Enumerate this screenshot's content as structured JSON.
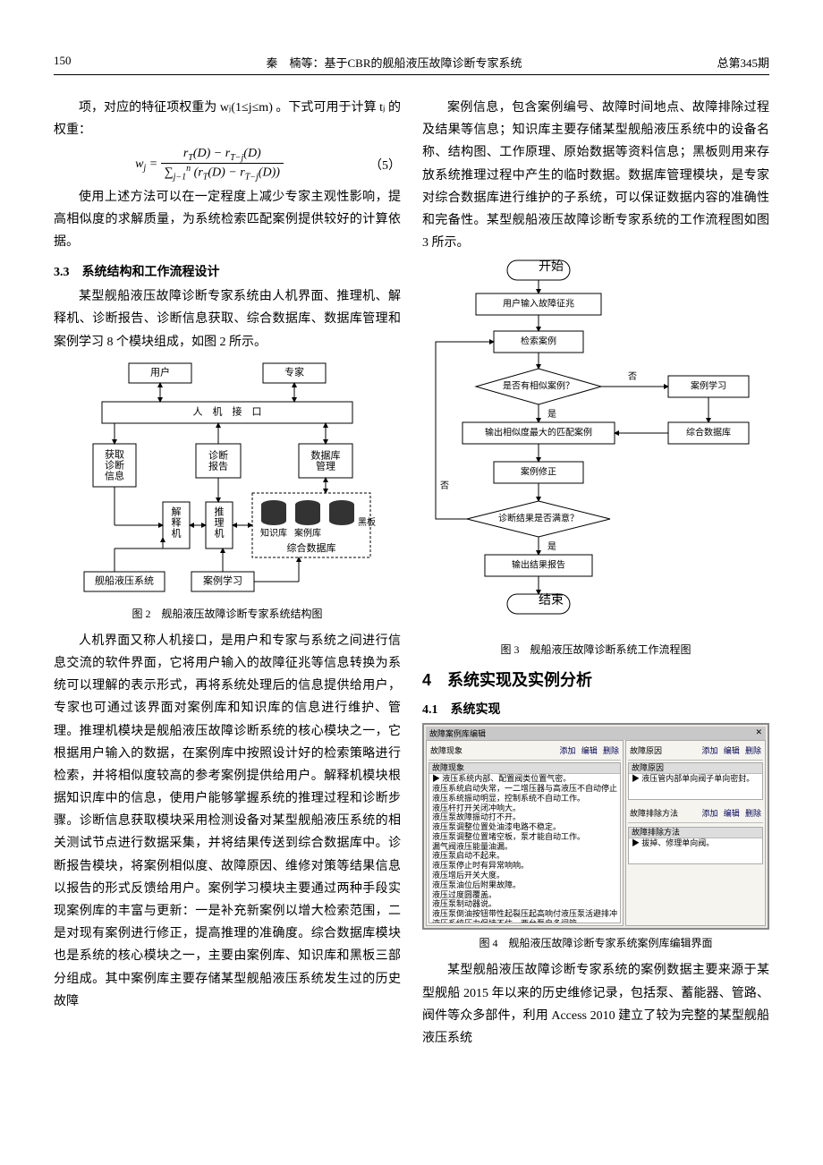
{
  "header": {
    "page": "150",
    "center": "秦　楠等：基于CBR的舰船液压故障诊断专家系统",
    "right": "总第345期"
  },
  "section33": {
    "title": "3.3　系统结构和工作流程设计"
  },
  "section4": {
    "title": "4　系统实现及实例分析"
  },
  "section41": {
    "title": "4.1　系统实现"
  },
  "p1": "项，对应的特征项权重为 wⱼ(1≤j≤m) 。下式可用于计算 tⱼ 的权重：",
  "eqno5": "（5）",
  "p2": "使用上述方法可以在一定程度上减少专家主观性影响，提高相似度的求解质量，为系统检索匹配案例提供较好的计算依据。",
  "p3": "某型舰船液压故障诊断专家系统由人机界面、推理机、解释机、诊断报告、诊断信息获取、综合数据库、数据库管理和案例学习 8 个模块组成，如图 2 所示。",
  "fig2": {
    "caption": "图 2　舰船液压故障诊断专家系统结构图",
    "nodes": {
      "user": "用户",
      "expert": "专家",
      "hmi": "人　机　接　口",
      "acq": "获取\n诊断\n信息",
      "report": "诊断\n报告",
      "dbmgr": "数据库\n管理",
      "explain": "解\n释\n机",
      "infer": "推\n理\n机",
      "bb": "黑板",
      "kb": "知识库",
      "cb": "案例库",
      "cdb": "综合数据库",
      "sys": "舰船液压系统",
      "learn": "案例学习"
    }
  },
  "p4": "人机界面又称人机接口，是用户和专家与系统之间进行信息交流的软件界面，它将用户输入的故障征兆等信息转换为系统可以理解的表示形式，再将系统处理后的信息提供给用户，专家也可通过该界面对案例库和知识库的信息进行维护、管理。推理机模块是舰船液压故障诊断系统的核心模块之一，它根据用户输入的数据，在案例库中按照设计好的检索策略进行检索，并将相似度较高的参考案例提供给用户。解释机模块根据知识库中的信息，使用户能够掌握系统的推理过程和诊断步骤。诊断信息获取模块采用检测设备对某型舰船液压系统的相关测试节点进行数据采集，并将结果传送到综合数据库中。诊断报告模块，将案例相似度、故障原因、维修对策等结果信息以报告的形式反馈给用户。案例学习模块主要通过两种手段实现案例库的丰富与更新：一是补充新案例以增大检索范围，二是对现有案例进行修正，提高推理的准确度。综合数据库模块也是系统的核心模块之一，主要由案例库、知识库和黑板三部分组成。其中案例库主要存储某型舰船液压系统发生过的历史故障",
  "pR1": "案例信息，包含案例编号、故障时间地点、故障排除过程及结果等信息；知识库主要存储某型舰船液压系统中的设备名称、结构图、工作原理、原始数据等资料信息；黑板则用来存放系统推理过程中产生的临时数据。数据库管理模块，是专家对综合数据库进行维护的子系统，可以保证数据内容的准确性和完备性。某型舰船液压故障诊断专家系统的工作流程图如图 3 所示。",
  "fig3": {
    "caption": "图 3　舰船液压故障诊断系统工作流程图",
    "nodes": {
      "start": "开始",
      "input": "用户输入故障征兆",
      "search": "检索案例",
      "d1": "是否有相似案例？",
      "learn": "案例学习",
      "cdb": "综合数据库",
      "out1": "输出相似度最大的匹配案例",
      "revise": "案例修正",
      "d2": "诊断结果是否满意？",
      "out2": "输出结果报告",
      "end": "结束",
      "yes": "是",
      "no": "否"
    }
  },
  "fig4": {
    "caption": "图 4　舰船液压故障诊断专家系统案例库编辑界面",
    "title": "故障案例库编辑",
    "btn_add": "添加",
    "btn_edit": "编辑",
    "btn_del": "删除",
    "left_title": "故障现象",
    "right_title1": "故障原因",
    "right_title2": "故障排除方法",
    "left_rows": [
      "故障现象",
      "▶ 液压系统内部、配置阀类位置气密。",
      "液压系统启动失常，一二增压器与高液压不自动停止",
      "液压系统振动明显，控制系统不自动工作。",
      "液压杆打开关闭冲响大。",
      "液压泵故障振动打不开。",
      "液压泵调整位置处油漆电路不稳定。",
      "液压泵调整位置堵空板，泵才能自动工作。",
      "漏气阀液压能量油漏。",
      "液压泵启动不起来。",
      "液压泵停止时有异常响响。",
      "液压增后开关大度。",
      "液压泵油位后附果故障。",
      "液压过度圆覆盖。",
      "液压泵制动器说。",
      "液压泵倒油按钮带性起裂压起高响付液压泵活避排冲",
      "液压系统压力保持不住，两台泵自多闸管。",
      "液压泵倒油压辆、调目。",
      "液压回路两开不正常响响。",
      "液压泵外壳网络偷完。",
      "液压空气瓶内空瓶大量淤住油。",
      "液压装油辆出作不象。",
      "倒冲阀不倒冲。"
    ],
    "right_rows1": [
      "故障原因",
      "▶ 液压管内部单向阀子单向密封。"
    ],
    "right_rows2": [
      "故障排除方法",
      "▶ 拔掉、修理单向阀。"
    ]
  },
  "pR2": "某型舰船液压故障诊断专家系统的案例数据主要来源于某型舰船 2015 年以来的历史维修记录，包括泵、蓄能器、管路、阀件等众多部件，利用 Access 2010 建立了较为完整的某型舰船液压系统"
}
